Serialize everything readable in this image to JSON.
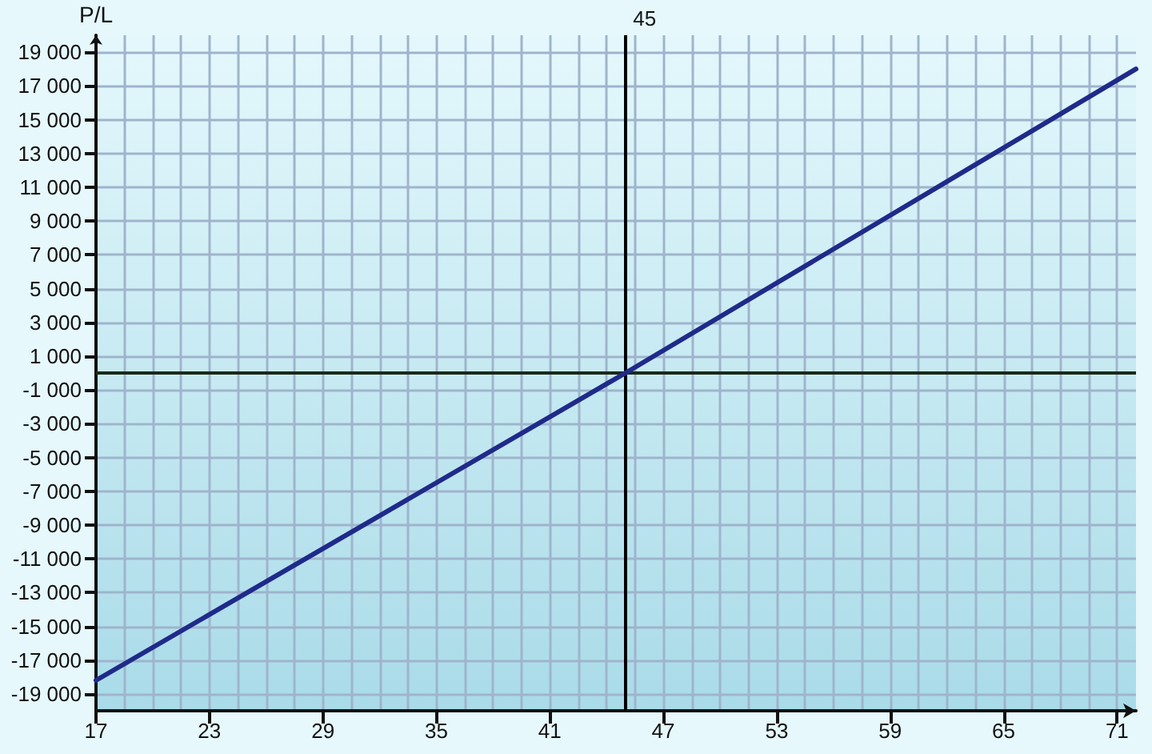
{
  "chart_data": {
    "type": "line",
    "ylabel": "P/L",
    "x": [
      17,
      45,
      72
    ],
    "series": [
      {
        "color": "#1f2a8a",
        "values": [
          -18200,
          0,
          18000
        ]
      }
    ],
    "xlim": [
      17,
      72
    ],
    "xticks": [
      17,
      23,
      29,
      35,
      41,
      47,
      53,
      59,
      65,
      71
    ],
    "ylim": [
      -20000,
      20000
    ],
    "yticks": [
      {
        "value": -19000,
        "label": "-19 000"
      },
      {
        "value": -17000,
        "label": "-17 000"
      },
      {
        "value": -15000,
        "label": "-15 000"
      },
      {
        "value": -13000,
        "label": "-13 000"
      },
      {
        "value": -11000,
        "label": "-11 000"
      },
      {
        "value": -9000,
        "label": "-9 000"
      },
      {
        "value": -7000,
        "label": "-7 000"
      },
      {
        "value": -5000,
        "label": "-5 000"
      },
      {
        "value": -3000,
        "label": "-3 000"
      },
      {
        "value": -1000,
        "label": "-1 000"
      },
      {
        "value": 1000,
        "label": "1 000"
      },
      {
        "value": 3000,
        "label": "3 000"
      },
      {
        "value": 5000,
        "label": "5 000"
      },
      {
        "value": 7000,
        "label": "7 000"
      },
      {
        "value": 9000,
        "label": "9 000"
      },
      {
        "value": 11000,
        "label": "11 000"
      },
      {
        "value": 13000,
        "label": "13 000"
      },
      {
        "value": 15000,
        "label": "15 000"
      },
      {
        "value": 17000,
        "label": "17 000"
      },
      {
        "value": 19000,
        "label": "19 000"
      }
    ],
    "ref_lines": [
      {
        "axis": "x",
        "value": 45,
        "label": "45",
        "color": "#000000"
      },
      {
        "axis": "y",
        "value": 0,
        "color": "#1a2a1a"
      }
    ],
    "grid": true,
    "marker": "none",
    "line_style": "solid"
  }
}
